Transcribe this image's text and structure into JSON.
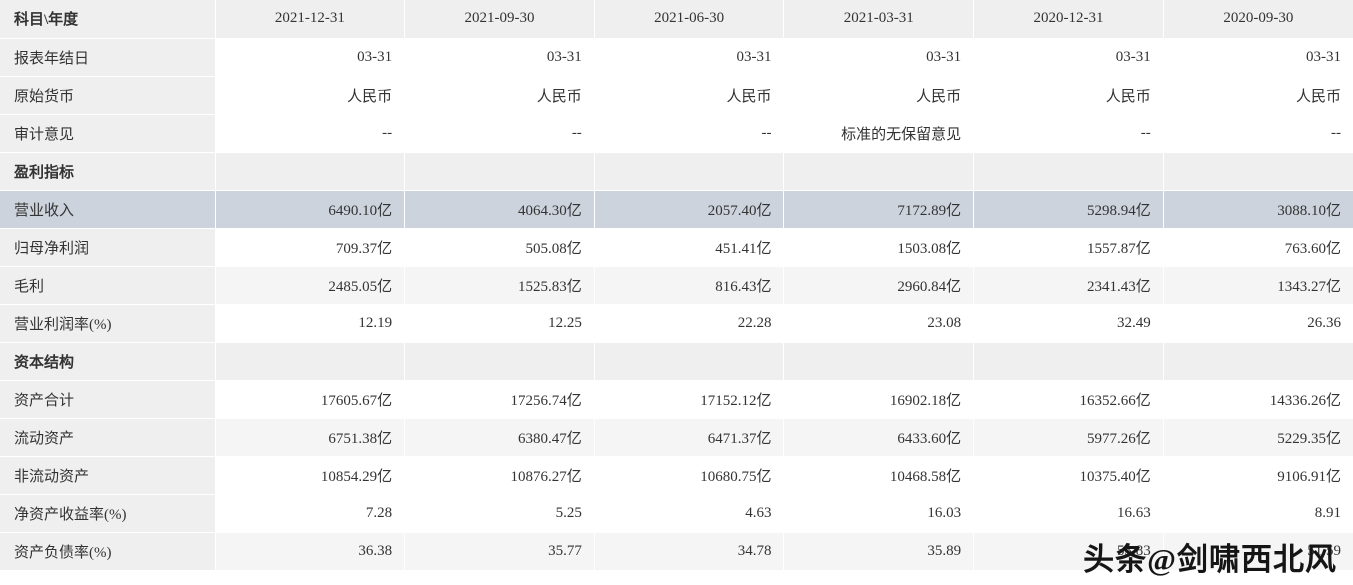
{
  "watermark": "头条@剑啸西北风",
  "colors": {
    "header_bg": "#efefef",
    "label_col_bg": "#efefef",
    "section_row_bg": "#efefef",
    "highlight_row_bg": "#ccd3dd",
    "stripe_row_bg": "#f5f5f5",
    "text": "#333333",
    "watermark_text": "#151515"
  },
  "table": {
    "corner_header": "科目\\年度",
    "header": [
      "科目\\年度",
      "2021-12-31",
      "2021-09-30",
      "2021-06-30",
      "2021-03-31",
      "2020-12-31",
      "2020-09-30"
    ],
    "rows": [
      {
        "label": "报表年结日",
        "type": "data",
        "values": [
          "03-31",
          "03-31",
          "03-31",
          "03-31",
          "03-31",
          "03-31"
        ]
      },
      {
        "label": "原始货币",
        "type": "data",
        "values": [
          "人民币",
          "人民币",
          "人民币",
          "人民币",
          "人民币",
          "人民币"
        ]
      },
      {
        "label": "审计意见",
        "type": "data",
        "values": [
          "--",
          "--",
          "--",
          "标准的无保留意见",
          "--",
          "--"
        ]
      },
      {
        "label": "盈利指标",
        "type": "section",
        "values": [
          "",
          "",
          "",
          "",
          "",
          ""
        ]
      },
      {
        "label": "营业收入",
        "type": "highlight",
        "values": [
          "6490.10亿",
          "4064.30亿",
          "2057.40亿",
          "7172.89亿",
          "5298.94亿",
          "3088.10亿"
        ]
      },
      {
        "label": "归母净利润",
        "type": "data",
        "values": [
          "709.37亿",
          "505.08亿",
          "451.41亿",
          "1503.08亿",
          "1557.87亿",
          "763.60亿"
        ]
      },
      {
        "label": "毛利",
        "type": "data",
        "values": [
          "2485.05亿",
          "1525.83亿",
          "816.43亿",
          "2960.84亿",
          "2341.43亿",
          "1343.27亿"
        ]
      },
      {
        "label": "营业利润率(%)",
        "type": "data",
        "values": [
          "12.19",
          "12.25",
          "22.28",
          "23.08",
          "32.49",
          "26.36"
        ]
      },
      {
        "label": "资本结构",
        "type": "section",
        "values": [
          "",
          "",
          "",
          "",
          "",
          ""
        ]
      },
      {
        "label": "资产合计",
        "type": "data",
        "values": [
          "17605.67亿",
          "17256.74亿",
          "17152.12亿",
          "16902.18亿",
          "16352.66亿",
          "14336.26亿"
        ]
      },
      {
        "label": "流动资产",
        "type": "data",
        "values": [
          "6751.38亿",
          "6380.47亿",
          "6471.37亿",
          "6433.60亿",
          "5977.26亿",
          "5229.35亿"
        ]
      },
      {
        "label": "非流动资产",
        "type": "data",
        "values": [
          "10854.29亿",
          "10876.27亿",
          "10680.75亿",
          "10468.58亿",
          "10375.40亿",
          "9106.91亿"
        ]
      },
      {
        "label": "净资产收益率(%)",
        "type": "data",
        "values": [
          "7.28",
          "5.25",
          "4.63",
          "16.03",
          "16.63",
          "8.91"
        ]
      },
      {
        "label": "资产负债率(%)",
        "type": "data",
        "values": [
          "36.38",
          "35.77",
          "34.78",
          "35.89",
          "53.83",
          "51.59"
        ]
      }
    ]
  }
}
